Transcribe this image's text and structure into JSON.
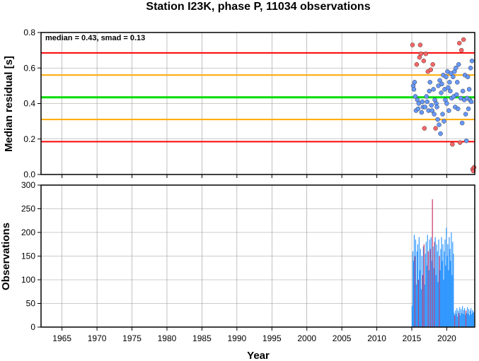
{
  "title": "Station I23K, phase P, 11034 observations",
  "colors": {
    "median_line": "#00dd00",
    "smad_lines": "#ffaa00",
    "outer_lines": "#ff0000",
    "point_in": "#6699ff",
    "point_out": "#ff6666",
    "bar_main": "#3399ff",
    "bar_alt": "#cc3366",
    "grid": "#999999"
  },
  "chart_data": [
    {
      "type": "scatter",
      "annotation": "median = 0.43, smad = 0.13",
      "ylabel": "Median residual [s]",
      "xlabel": "",
      "xlim": [
        1962,
        2024
      ],
      "ylim": [
        0,
        0.8
      ],
      "yticks": [
        "0.0",
        "0.2",
        "0.4",
        "0.6",
        "0.8"
      ],
      "xticks": [
        1965,
        1970,
        1975,
        1980,
        1985,
        1990,
        1995,
        2000,
        2005,
        2010,
        2015,
        2020
      ],
      "grid": true,
      "hlines": [
        {
          "y": 0.685,
          "color": "red"
        },
        {
          "y": 0.56,
          "color": "orange"
        },
        {
          "y": 0.435,
          "color": "green"
        },
        {
          "y": 0.31,
          "color": "orange"
        },
        {
          "y": 0.185,
          "color": "red"
        }
      ],
      "points": [
        [
          2015.1,
          0.73,
          "o"
        ],
        [
          2015.2,
          0.5,
          "i"
        ],
        [
          2015.3,
          0.48,
          "i"
        ],
        [
          2015.4,
          0.52,
          "i"
        ],
        [
          2015.5,
          0.44,
          "i"
        ],
        [
          2015.6,
          0.36,
          "i"
        ],
        [
          2015.7,
          0.62,
          "o"
        ],
        [
          2015.8,
          0.42,
          "i"
        ],
        [
          2015.9,
          0.37,
          "i"
        ],
        [
          2016.0,
          0.4,
          "i"
        ],
        [
          2016.1,
          0.66,
          "o"
        ],
        [
          2016.2,
          0.73,
          "o"
        ],
        [
          2016.3,
          0.68,
          "o"
        ],
        [
          2016.4,
          0.35,
          "i"
        ],
        [
          2016.5,
          0.41,
          "i"
        ],
        [
          2016.6,
          0.38,
          "i"
        ],
        [
          2016.7,
          0.64,
          "o"
        ],
        [
          2016.8,
          0.26,
          "o"
        ],
        [
          2016.9,
          0.38,
          "i"
        ],
        [
          2017.0,
          0.68,
          "o"
        ],
        [
          2017.1,
          0.44,
          "i"
        ],
        [
          2017.2,
          0.41,
          "i"
        ],
        [
          2017.3,
          0.58,
          "o"
        ],
        [
          2017.4,
          0.36,
          "i"
        ],
        [
          2017.5,
          0.47,
          "i"
        ],
        [
          2017.6,
          0.52,
          "i"
        ],
        [
          2017.7,
          0.59,
          "o"
        ],
        [
          2017.8,
          0.39,
          "i"
        ],
        [
          2017.9,
          0.36,
          "i"
        ],
        [
          2018.0,
          0.62,
          "o"
        ],
        [
          2018.1,
          0.48,
          "i"
        ],
        [
          2018.2,
          0.34,
          "i"
        ],
        [
          2018.3,
          0.42,
          "i"
        ],
        [
          2018.4,
          0.26,
          "o"
        ],
        [
          2018.5,
          0.4,
          "i"
        ],
        [
          2018.6,
          0.38,
          "i"
        ],
        [
          2018.7,
          0.31,
          "i"
        ],
        [
          2018.8,
          0.5,
          "i"
        ],
        [
          2018.9,
          0.28,
          "i"
        ],
        [
          2019.0,
          0.53,
          "i"
        ],
        [
          2019.1,
          0.23,
          "i"
        ],
        [
          2019.2,
          0.46,
          "i"
        ],
        [
          2019.3,
          0.51,
          "i"
        ],
        [
          2019.4,
          0.34,
          "i"
        ],
        [
          2019.5,
          0.56,
          "i"
        ],
        [
          2019.6,
          0.3,
          "i"
        ],
        [
          2019.7,
          0.48,
          "i"
        ],
        [
          2019.8,
          0.42,
          "i"
        ],
        [
          2019.9,
          0.55,
          "i"
        ],
        [
          2020.0,
          0.4,
          "i"
        ],
        [
          2020.1,
          0.58,
          "i"
        ],
        [
          2020.2,
          0.49,
          "i"
        ],
        [
          2020.3,
          0.36,
          "i"
        ],
        [
          2020.4,
          0.52,
          "i"
        ],
        [
          2020.5,
          0.47,
          "i"
        ],
        [
          2020.6,
          0.57,
          "i"
        ],
        [
          2020.7,
          0.43,
          "i"
        ],
        [
          2020.8,
          0.17,
          "o"
        ],
        [
          2020.9,
          0.55,
          "i"
        ],
        [
          2021.0,
          0.44,
          "i"
        ],
        [
          2021.1,
          0.58,
          "i"
        ],
        [
          2021.2,
          0.38,
          "i"
        ],
        [
          2021.3,
          0.6,
          "i"
        ],
        [
          2021.4,
          0.45,
          "i"
        ],
        [
          2021.5,
          0.52,
          "i"
        ],
        [
          2021.6,
          0.37,
          "i"
        ],
        [
          2021.7,
          0.62,
          "i"
        ],
        [
          2021.8,
          0.74,
          "o"
        ],
        [
          2021.9,
          0.18,
          "o"
        ],
        [
          2022.0,
          0.43,
          "i"
        ],
        [
          2022.1,
          0.7,
          "o"
        ],
        [
          2022.2,
          0.29,
          "i"
        ],
        [
          2022.3,
          0.47,
          "i"
        ],
        [
          2022.4,
          0.76,
          "o"
        ],
        [
          2022.5,
          0.42,
          "i"
        ],
        [
          2022.6,
          0.56,
          "i"
        ],
        [
          2022.7,
          0.34,
          "i"
        ],
        [
          2022.8,
          0.19,
          "i"
        ],
        [
          2022.9,
          0.43,
          "i"
        ],
        [
          2023.0,
          0.55,
          "i"
        ],
        [
          2023.1,
          0.37,
          "i"
        ],
        [
          2023.2,
          0.48,
          "i"
        ],
        [
          2023.3,
          0.42,
          "i"
        ],
        [
          2023.4,
          0.6,
          "i"
        ],
        [
          2023.5,
          0.41,
          "i"
        ],
        [
          2023.6,
          0.64,
          "i"
        ],
        [
          2023.7,
          0.03,
          "o"
        ],
        [
          2023.8,
          0.02,
          "o"
        ],
        [
          2023.9,
          0.04,
          "o"
        ]
      ]
    },
    {
      "type": "bar",
      "ylabel": "Observations",
      "xlabel": "Year",
      "xlim": [
        1962,
        2024
      ],
      "ylim": [
        0,
        300
      ],
      "yticks": [
        "0",
        "50",
        "100",
        "150",
        "200",
        "250",
        "300"
      ],
      "xticks": [
        1965,
        1970,
        1975,
        1980,
        1985,
        1990,
        1995,
        2000,
        2005,
        2010,
        2015,
        2020
      ],
      "xticklabels": [
        "1965",
        "1970",
        "1975",
        "1980",
        "1985",
        "1990",
        "1995",
        "2000",
        "2005",
        "2010",
        "2015",
        "2020"
      ],
      "grid": true,
      "bars": [
        [
          2015.05,
          45,
          "b"
        ],
        [
          2015.15,
          160,
          "b"
        ],
        [
          2015.25,
          140,
          "b"
        ],
        [
          2015.35,
          195,
          "b"
        ],
        [
          2015.45,
          150,
          "r"
        ],
        [
          2015.55,
          185,
          "b"
        ],
        [
          2015.65,
          90,
          "b"
        ],
        [
          2015.75,
          160,
          "b"
        ],
        [
          2015.85,
          175,
          "b"
        ],
        [
          2015.95,
          100,
          "r"
        ],
        [
          2016.05,
          190,
          "b"
        ],
        [
          2016.15,
          120,
          "b"
        ],
        [
          2016.25,
          165,
          "b"
        ],
        [
          2016.35,
          80,
          "b"
        ],
        [
          2016.45,
          150,
          "b"
        ],
        [
          2016.55,
          110,
          "r"
        ],
        [
          2016.65,
          170,
          "b"
        ],
        [
          2016.75,
          175,
          "r"
        ],
        [
          2016.85,
          90,
          "b"
        ],
        [
          2016.95,
          155,
          "b"
        ],
        [
          2017.05,
          180,
          "b"
        ],
        [
          2017.15,
          130,
          "b"
        ],
        [
          2017.25,
          195,
          "b"
        ],
        [
          2017.35,
          160,
          "r"
        ],
        [
          2017.45,
          120,
          "b"
        ],
        [
          2017.55,
          185,
          "b"
        ],
        [
          2017.65,
          165,
          "r"
        ],
        [
          2017.75,
          190,
          "b"
        ],
        [
          2017.85,
          140,
          "b"
        ],
        [
          2017.95,
          270,
          "r"
        ],
        [
          2018.05,
          170,
          "b"
        ],
        [
          2018.15,
          125,
          "b"
        ],
        [
          2018.25,
          180,
          "r"
        ],
        [
          2018.35,
          190,
          "b"
        ],
        [
          2018.45,
          110,
          "b"
        ],
        [
          2018.55,
          175,
          "b"
        ],
        [
          2018.65,
          160,
          "b"
        ],
        [
          2018.75,
          95,
          "b"
        ],
        [
          2018.85,
          185,
          "b"
        ],
        [
          2018.95,
          150,
          "r"
        ],
        [
          2019.05,
          120,
          "b"
        ],
        [
          2019.15,
          165,
          "b"
        ],
        [
          2019.25,
          190,
          "b"
        ],
        [
          2019.35,
          140,
          "b"
        ],
        [
          2019.45,
          175,
          "b"
        ],
        [
          2019.55,
          100,
          "b"
        ],
        [
          2019.65,
          160,
          "b"
        ],
        [
          2019.75,
          185,
          "b"
        ],
        [
          2019.85,
          130,
          "b"
        ],
        [
          2019.95,
          210,
          "b"
        ],
        [
          2020.05,
          150,
          "b"
        ],
        [
          2020.15,
          175,
          "b"
        ],
        [
          2020.25,
          120,
          "b"
        ],
        [
          2020.35,
          190,
          "b"
        ],
        [
          2020.45,
          165,
          "b"
        ],
        [
          2020.55,
          140,
          "b"
        ],
        [
          2020.65,
          200,
          "b"
        ],
        [
          2020.75,
          110,
          "b"
        ],
        [
          2020.85,
          180,
          "b"
        ],
        [
          2020.95,
          155,
          "b"
        ],
        [
          2021.05,
          30,
          "b"
        ],
        [
          2021.15,
          25,
          "r"
        ],
        [
          2021.25,
          35,
          "b"
        ],
        [
          2021.35,
          28,
          "b"
        ],
        [
          2021.45,
          40,
          "b"
        ],
        [
          2021.55,
          22,
          "b"
        ],
        [
          2021.65,
          35,
          "b"
        ],
        [
          2021.75,
          30,
          "r"
        ],
        [
          2021.85,
          42,
          "b"
        ],
        [
          2021.95,
          25,
          "b"
        ],
        [
          2022.05,
          38,
          "b"
        ],
        [
          2022.15,
          30,
          "b"
        ],
        [
          2022.25,
          44,
          "b"
        ],
        [
          2022.35,
          28,
          "b"
        ],
        [
          2022.45,
          36,
          "b"
        ],
        [
          2022.55,
          40,
          "b"
        ],
        [
          2022.65,
          26,
          "b"
        ],
        [
          2022.75,
          35,
          "r"
        ],
        [
          2022.85,
          30,
          "b"
        ],
        [
          2022.95,
          42,
          "b"
        ],
        [
          2023.05,
          28,
          "b"
        ],
        [
          2023.15,
          38,
          "b"
        ],
        [
          2023.25,
          25,
          "b"
        ],
        [
          2023.35,
          34,
          "b"
        ],
        [
          2023.45,
          40,
          "b"
        ],
        [
          2023.55,
          27,
          "b"
        ],
        [
          2023.65,
          36,
          "b"
        ],
        [
          2023.75,
          30,
          "b"
        ],
        [
          2023.85,
          33,
          "b"
        ]
      ]
    }
  ]
}
